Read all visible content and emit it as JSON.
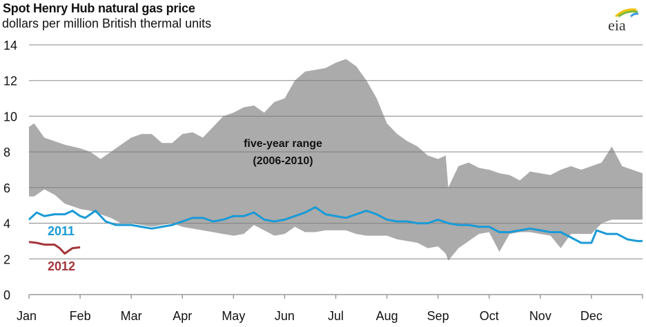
{
  "chart_data": {
    "type": "area",
    "title": "Spot Henry Hub natural gas price",
    "subtitle": "dollars per million British thermal units",
    "source_logo": "eia",
    "xlabel": "",
    "ylabel": "",
    "ylim": [
      0,
      14
    ],
    "yticks": [
      "0",
      "2",
      "4",
      "6",
      "8",
      "10",
      "12",
      "14"
    ],
    "xlim_months": [
      0,
      12
    ],
    "xticks": [
      "Jan",
      "Feb",
      "Mar",
      "Apr",
      "May",
      "Jun",
      "Jul",
      "Aug",
      "Sep",
      "Oct",
      "Nov",
      "Dec"
    ],
    "grid": true,
    "range": {
      "name": "five-year range",
      "name_line2": "(2006-2010)",
      "color": "#ababab",
      "x": [
        0,
        0.1,
        0.3,
        0.5,
        0.7,
        1.0,
        1.2,
        1.4,
        1.6,
        1.8,
        2.0,
        2.2,
        2.4,
        2.6,
        2.8,
        3.0,
        3.2,
        3.4,
        3.6,
        3.8,
        4.0,
        4.2,
        4.4,
        4.6,
        4.8,
        5.0,
        5.2,
        5.4,
        5.6,
        5.8,
        6.0,
        6.2,
        6.4,
        6.6,
        6.8,
        7.0,
        7.2,
        7.4,
        7.6,
        7.8,
        8.0,
        8.15,
        8.2,
        8.4,
        8.6,
        8.8,
        9.0,
        9.2,
        9.4,
        9.6,
        9.8,
        10.0,
        10.2,
        10.4,
        10.6,
        10.8,
        11.0,
        11.2,
        11.4,
        11.6,
        11.8,
        12.0
      ],
      "upper": [
        9.4,
        9.6,
        8.8,
        8.6,
        8.4,
        8.2,
        8.0,
        7.6,
        8.0,
        8.4,
        8.8,
        9.0,
        9.0,
        8.5,
        8.5,
        9.0,
        9.1,
        8.8,
        9.4,
        10.0,
        10.2,
        10.5,
        10.6,
        10.2,
        10.8,
        11.0,
        12.0,
        12.5,
        12.6,
        12.7,
        13.0,
        13.2,
        12.8,
        12.0,
        11.0,
        9.6,
        9.0,
        8.6,
        8.3,
        7.8,
        7.6,
        7.8,
        6.0,
        7.2,
        7.4,
        7.1,
        7.0,
        6.8,
        6.7,
        6.4,
        6.9,
        6.8,
        6.7,
        7.0,
        7.2,
        7.0,
        7.2,
        7.4,
        8.3,
        7.2,
        7.0,
        6.8
      ],
      "lower": [
        5.5,
        5.5,
        5.9,
        5.6,
        5.1,
        4.8,
        4.7,
        4.5,
        4.3,
        4.0,
        4.0,
        3.9,
        3.8,
        3.9,
        4.0,
        3.8,
        3.7,
        3.6,
        3.5,
        3.4,
        3.3,
        3.4,
        3.9,
        3.6,
        3.3,
        3.4,
        3.8,
        3.5,
        3.5,
        3.6,
        3.6,
        3.6,
        3.4,
        3.3,
        3.3,
        3.3,
        3.1,
        3.0,
        2.9,
        2.6,
        2.7,
        2.3,
        1.9,
        2.6,
        3.0,
        3.4,
        3.5,
        2.4,
        3.4,
        3.5,
        3.5,
        3.4,
        3.3,
        2.6,
        3.4,
        3.4,
        3.4,
        4.0,
        4.2,
        4.2,
        4.2,
        4.2
      ]
    },
    "series": [
      {
        "name": "2011",
        "color": "#1a9ad6",
        "x": [
          0,
          0.15,
          0.3,
          0.5,
          0.7,
          0.85,
          1.0,
          1.1,
          1.3,
          1.5,
          1.7,
          2.0,
          2.2,
          2.4,
          2.6,
          2.8,
          3.0,
          3.2,
          3.4,
          3.6,
          3.8,
          4.0,
          4.2,
          4.4,
          4.6,
          4.8,
          5.0,
          5.2,
          5.4,
          5.6,
          5.8,
          6.0,
          6.2,
          6.4,
          6.6,
          6.8,
          7.0,
          7.2,
          7.4,
          7.6,
          7.8,
          8.0,
          8.2,
          8.4,
          8.6,
          8.8,
          9.0,
          9.2,
          9.4,
          9.6,
          9.8,
          10.0,
          10.2,
          10.4,
          10.6,
          10.8,
          11.0,
          11.1,
          11.3,
          11.5,
          11.7,
          11.9,
          12.0
        ],
        "values": [
          4.2,
          4.6,
          4.4,
          4.5,
          4.5,
          4.7,
          4.4,
          4.3,
          4.7,
          4.1,
          3.9,
          3.9,
          3.8,
          3.7,
          3.8,
          3.9,
          4.1,
          4.3,
          4.3,
          4.1,
          4.2,
          4.4,
          4.4,
          4.6,
          4.2,
          4.1,
          4.2,
          4.4,
          4.6,
          4.9,
          4.5,
          4.4,
          4.3,
          4.5,
          4.7,
          4.5,
          4.2,
          4.1,
          4.1,
          4.0,
          4.0,
          4.2,
          4.0,
          3.9,
          3.9,
          3.8,
          3.8,
          3.5,
          3.5,
          3.6,
          3.7,
          3.6,
          3.5,
          3.5,
          3.2,
          2.9,
          2.9,
          3.6,
          3.4,
          3.4,
          3.1,
          3.0,
          3.0
        ]
      },
      {
        "name": "2012",
        "color": "#a3353a",
        "x": [
          0,
          0.15,
          0.3,
          0.5,
          0.6,
          0.7,
          0.85,
          1.0
        ],
        "values": [
          2.95,
          2.9,
          2.8,
          2.8,
          2.6,
          2.3,
          2.6,
          2.65
        ]
      }
    ]
  }
}
